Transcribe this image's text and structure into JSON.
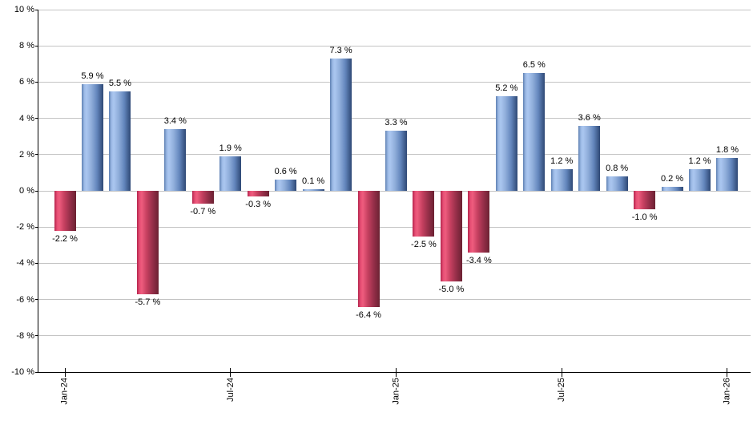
{
  "chart_data": {
    "type": "bar",
    "description": "Monthly percent returns bar chart",
    "values": [
      -2.2,
      5.9,
      5.5,
      -5.7,
      3.4,
      -0.7,
      1.9,
      -0.3,
      0.6,
      0.1,
      7.3,
      -6.4,
      3.3,
      -2.5,
      -5.0,
      -3.4,
      5.2,
      6.5,
      1.2,
      3.6,
      0.8,
      -1.0,
      0.2,
      1.2,
      1.8
    ],
    "bar_value_labels": [
      "-2.2 %",
      "5.9 %",
      "5.5 %",
      "-5.7 %",
      "3.4 %",
      "-0.7 %",
      "1.9 %",
      "-0.3 %",
      "0.6 %",
      "0.1 %",
      "7.3 %",
      "-6.4 %",
      "3.3 %",
      "-2.5 %",
      "-5.0 %",
      "-3.4 %",
      "5.2 %",
      "6.5 %",
      "1.2 %",
      "3.6 %",
      "0.8 %",
      "-1.0 %",
      "0.2 %",
      "1.2 %",
      "1.8 %"
    ],
    "x_axis": {
      "tick_labels": [
        "Jan-24",
        "Jul-24",
        "Jan-25",
        "Jul-25",
        "Jan-26"
      ],
      "tick_positions": [
        0,
        6,
        12,
        18,
        24
      ]
    },
    "y_axis": {
      "min": -10,
      "max": 10,
      "ticks": [
        10,
        8,
        6,
        4,
        2,
        0,
        -2,
        -4,
        -6,
        -8,
        -10
      ],
      "suffix": " %"
    },
    "grid": true,
    "legend": "none",
    "colors": {
      "positive_bar_stops": [
        "#5e80b2",
        "#9dbae6",
        "#abc7f0",
        "#8fadda",
        "#6487bd",
        "#2e4875"
      ],
      "negative_bar_stops": [
        "#b4244c",
        "#e64e74",
        "#ee5c7e",
        "#c64060",
        "#99304b",
        "#6b2132"
      ],
      "gridline": "#c4c4c4",
      "axis": "#000000",
      "label_text": "#000000",
      "background": "#ffffff"
    }
  }
}
